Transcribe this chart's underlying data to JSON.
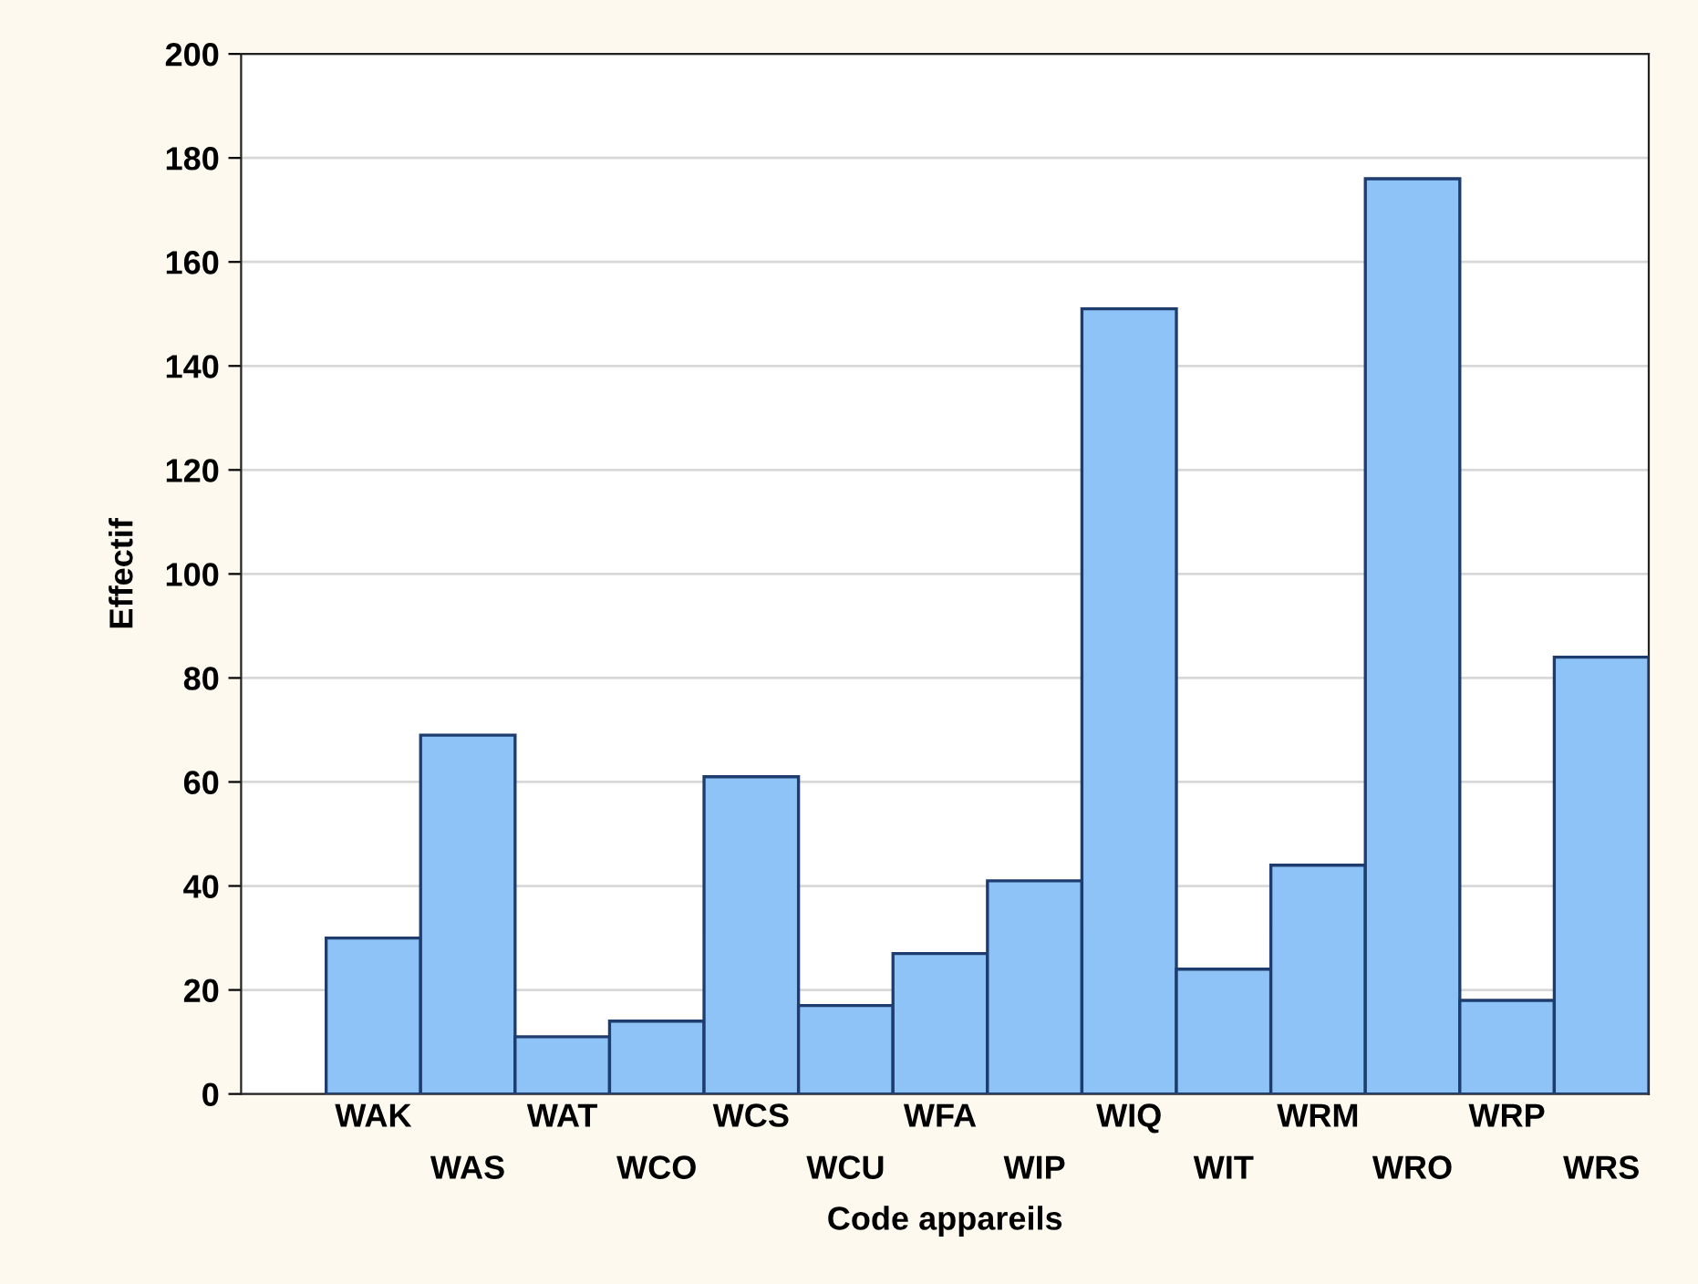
{
  "chart_data": {
    "type": "bar",
    "xlabel": "Code appareils",
    "ylabel": "Effectif",
    "categories": [
      "WAK",
      "WAS",
      "WAT",
      "WCO",
      "WCS",
      "WCU",
      "WFA",
      "WIP",
      "WIQ",
      "WIT",
      "WRM",
      "WRO",
      "WRP",
      "WRS"
    ],
    "values": [
      30,
      69,
      11,
      14,
      61,
      17,
      27,
      41,
      151,
      24,
      44,
      176,
      18,
      84
    ],
    "color": "#8ec3f7",
    "ylim": [
      0,
      200
    ],
    "yticks": [
      0,
      20,
      40,
      60,
      80,
      100,
      120,
      140,
      160,
      180,
      200
    ],
    "grid": "y"
  }
}
